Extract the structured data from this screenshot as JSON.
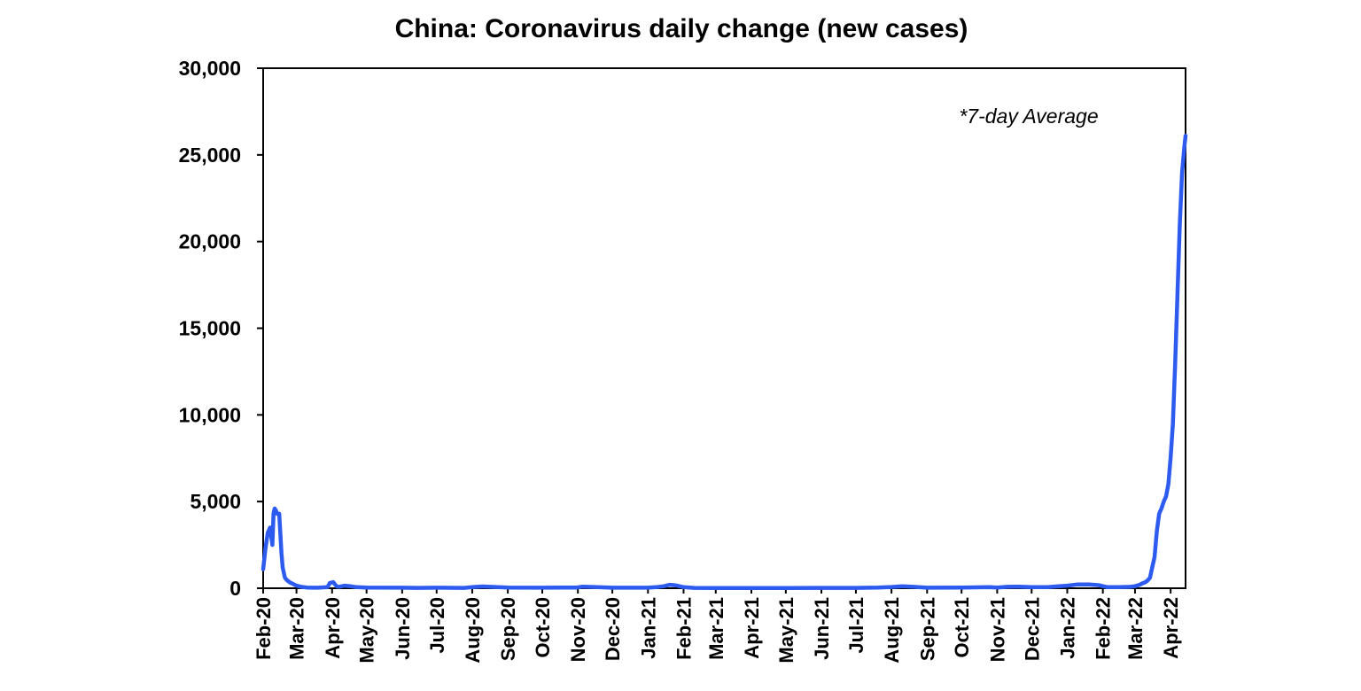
{
  "chart_data": {
    "type": "line",
    "title": "China: Coronavirus daily change (new cases)",
    "annotation": "*7-day Average",
    "xlabel": "",
    "ylabel": "",
    "x_range": [
      "2020-02-01",
      "2022-04-14"
    ],
    "ylim": [
      0,
      30000
    ],
    "yticks": [
      0,
      5000,
      10000,
      15000,
      20000,
      25000,
      30000
    ],
    "ytick_labels": [
      "0",
      "5,000",
      "10,000",
      "15,000",
      "20,000",
      "25,000",
      "30,000"
    ],
    "xticks": [
      "2020-02-01",
      "2020-03-01",
      "2020-04-01",
      "2020-05-01",
      "2020-06-01",
      "2020-07-01",
      "2020-08-01",
      "2020-09-01",
      "2020-10-01",
      "2020-11-01",
      "2020-12-01",
      "2021-01-01",
      "2021-02-01",
      "2021-03-01",
      "2021-04-01",
      "2021-05-01",
      "2021-06-01",
      "2021-07-01",
      "2021-08-01",
      "2021-09-01",
      "2021-10-01",
      "2021-11-01",
      "2021-12-01",
      "2022-01-01",
      "2022-02-01",
      "2022-03-01",
      "2022-04-01"
    ],
    "xtick_labels": [
      "Feb-20",
      "Mar-20",
      "Apr-20",
      "May-20",
      "Jun-20",
      "Jul-20",
      "Aug-20",
      "Sep-20",
      "Oct-20",
      "Nov-20",
      "Dec-20",
      "Jan-21",
      "Feb-21",
      "Mar-21",
      "Apr-21",
      "May-21",
      "Jun-21",
      "Jul-21",
      "Aug-21",
      "Sep-21",
      "Oct-21",
      "Nov-21",
      "Dec-21",
      "Jan-22",
      "Feb-22",
      "Mar-22",
      "Apr-22"
    ],
    "grid": false,
    "legend": "none",
    "line_color": "#2d5bf0",
    "series": [
      {
        "x": [
          "2020-02-01",
          "2020-02-03",
          "2020-02-05",
          "2020-02-07",
          "2020-02-09",
          "2020-02-10",
          "2020-02-11",
          "2020-02-12",
          "2020-02-13",
          "2020-02-15",
          "2020-02-17",
          "2020-02-18",
          "2020-02-20",
          "2020-02-22",
          "2020-02-24",
          "2020-02-27",
          "2020-03-01",
          "2020-03-05",
          "2020-03-10",
          "2020-03-15",
          "2020-03-20",
          "2020-03-28",
          "2020-03-30",
          "2020-04-02",
          "2020-04-05",
          "2020-04-07",
          "2020-04-12",
          "2020-04-17",
          "2020-04-22",
          "2020-05-01",
          "2020-06-01",
          "2020-06-14",
          "2020-07-01",
          "2020-07-25",
          "2020-08-01",
          "2020-08-10",
          "2020-09-01",
          "2020-10-01",
          "2020-10-31",
          "2020-11-05",
          "2020-11-15",
          "2020-12-01",
          "2021-01-01",
          "2021-01-08",
          "2021-01-15",
          "2021-01-20",
          "2021-01-25",
          "2021-02-01",
          "2021-02-10",
          "2021-03-01",
          "2021-04-01",
          "2021-05-01",
          "2021-06-01",
          "2021-07-01",
          "2021-07-20",
          "2021-08-01",
          "2021-08-10",
          "2021-08-20",
          "2021-09-01",
          "2021-10-01",
          "2021-10-25",
          "2021-11-01",
          "2021-11-10",
          "2021-11-20",
          "2021-12-01",
          "2021-12-15",
          "2021-12-25",
          "2022-01-01",
          "2022-01-10",
          "2022-01-20",
          "2022-01-28",
          "2022-02-05",
          "2022-02-15",
          "2022-02-25",
          "2022-03-01",
          "2022-03-05",
          "2022-03-08",
          "2022-03-10",
          "2022-03-12",
          "2022-03-14",
          "2022-03-15",
          "2022-03-16",
          "2022-03-18",
          "2022-03-20",
          "2022-03-22",
          "2022-03-24",
          "2022-03-26",
          "2022-03-28",
          "2022-03-30",
          "2022-04-01",
          "2022-04-03",
          "2022-04-05",
          "2022-04-07",
          "2022-04-09",
          "2022-04-11",
          "2022-04-13",
          "2022-04-14"
        ],
        "y": [
          1100,
          2300,
          3200,
          3500,
          2500,
          4300,
          4600,
          4500,
          4300,
          4300,
          2000,
          1200,
          600,
          450,
          350,
          250,
          150,
          80,
          40,
          30,
          30,
          60,
          300,
          350,
          100,
          80,
          150,
          120,
          60,
          40,
          30,
          20,
          30,
          20,
          60,
          100,
          40,
          30,
          40,
          90,
          70,
          30,
          30,
          60,
          120,
          200,
          170,
          60,
          20,
          10,
          10,
          10,
          20,
          20,
          40,
          70,
          110,
          80,
          30,
          40,
          60,
          40,
          80,
          90,
          60,
          60,
          120,
          150,
          220,
          220,
          180,
          60,
          60,
          80,
          120,
          200,
          300,
          350,
          450,
          600,
          900,
          1200,
          1800,
          3300,
          4300,
          4600,
          5000,
          5300,
          6000,
          7500,
          9500,
          13000,
          17000,
          21000,
          24000,
          25500,
          26100
        ]
      }
    ]
  }
}
